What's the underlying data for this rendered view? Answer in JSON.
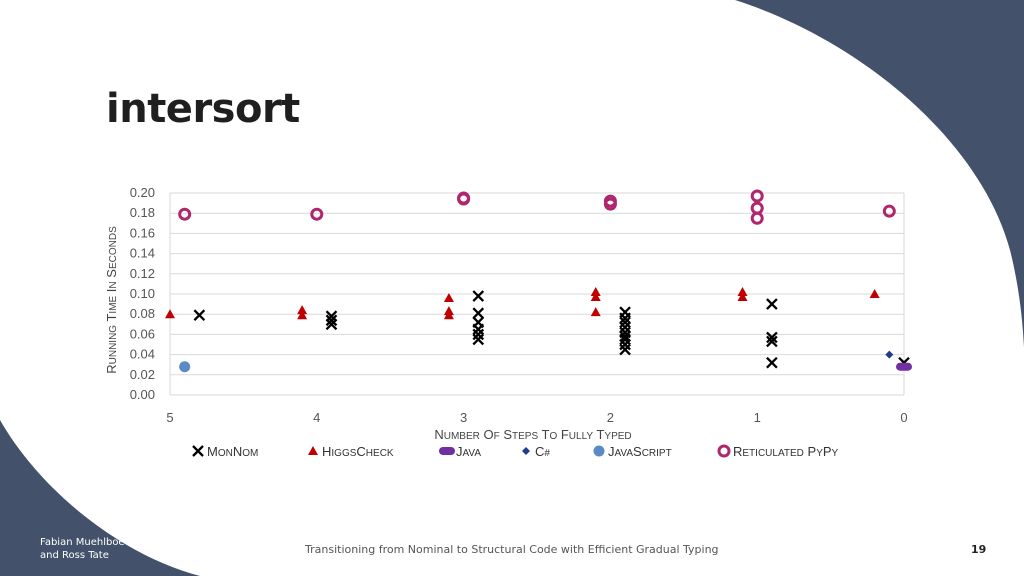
{
  "slide": {
    "title": "intersort",
    "authors_line1": "Fabian Muehlboeck",
    "authors_line2": "and Ross Tate",
    "footer": "Transitioning from Nominal to Structural Code with Efficient Gradual Typing",
    "page_number": "19",
    "colors": {
      "accent": "#43526a",
      "background": "#ffffff"
    }
  },
  "chart_data": {
    "type": "scatter",
    "title": "",
    "xlabel": "Number of Steps to Fully Typed",
    "ylabel": "Running Time in Seconds",
    "xlim": [
      5,
      0
    ],
    "ylim": [
      0,
      0.2
    ],
    "x_ticks": [
      "5",
      "4",
      "3",
      "2",
      "1",
      "0"
    ],
    "y_ticks": [
      "0.00",
      "0.02",
      "0.04",
      "0.06",
      "0.08",
      "0.10",
      "0.12",
      "0.14",
      "0.16",
      "0.18",
      "0.20"
    ],
    "grid": true,
    "legend_position": "bottom",
    "series": [
      {
        "name": "MonNom",
        "marker": "x",
        "color": "#000000",
        "points": [
          [
            4.8,
            0.079
          ],
          [
            3.9,
            0.078
          ],
          [
            3.9,
            0.074
          ],
          [
            3.9,
            0.07
          ],
          [
            2.9,
            0.098
          ],
          [
            2.9,
            0.081
          ],
          [
            2.9,
            0.072
          ],
          [
            2.9,
            0.065
          ],
          [
            2.9,
            0.06
          ],
          [
            2.9,
            0.055
          ],
          [
            1.9,
            0.082
          ],
          [
            1.9,
            0.076
          ],
          [
            1.9,
            0.072
          ],
          [
            1.9,
            0.067
          ],
          [
            1.9,
            0.062
          ],
          [
            1.9,
            0.058
          ],
          [
            1.9,
            0.055
          ],
          [
            1.9,
            0.05
          ],
          [
            1.9,
            0.045
          ],
          [
            0.9,
            0.09
          ],
          [
            0.9,
            0.057
          ],
          [
            0.9,
            0.053
          ],
          [
            0.9,
            0.032
          ],
          [
            0.0,
            0.032
          ]
        ]
      },
      {
        "name": "HiggsCheck",
        "marker": "triangle",
        "color": "#c00000",
        "points": [
          [
            5.0,
            0.08
          ],
          [
            4.1,
            0.084
          ],
          [
            4.1,
            0.079
          ],
          [
            3.1,
            0.096
          ],
          [
            3.1,
            0.083
          ],
          [
            3.1,
            0.079
          ],
          [
            2.1,
            0.102
          ],
          [
            2.1,
            0.097
          ],
          [
            2.1,
            0.082
          ],
          [
            1.1,
            0.102
          ],
          [
            1.1,
            0.097
          ],
          [
            0.2,
            0.1
          ]
        ]
      },
      {
        "name": "Java",
        "marker": "pill",
        "color": "#7030a0",
        "points": [
          [
            0.0,
            0.028
          ]
        ]
      },
      {
        "name": "C#",
        "marker": "diamond",
        "color": "#1f3d8c",
        "points": [
          [
            0.1,
            0.04
          ]
        ]
      },
      {
        "name": "JavaScript",
        "marker": "circle",
        "color": "#5b8ac6",
        "points": [
          [
            4.9,
            0.028
          ]
        ]
      },
      {
        "name": "Reticulated PyPy",
        "marker": "ring",
        "color": "#b0266e",
        "points": [
          [
            4.9,
            0.179
          ],
          [
            4.0,
            0.179
          ],
          [
            3.0,
            0.195
          ],
          [
            3.0,
            0.194
          ],
          [
            2.0,
            0.192
          ],
          [
            2.0,
            0.189
          ],
          [
            1.0,
            0.197
          ],
          [
            1.0,
            0.185
          ],
          [
            1.0,
            0.175
          ],
          [
            0.1,
            0.182
          ]
        ]
      }
    ]
  }
}
